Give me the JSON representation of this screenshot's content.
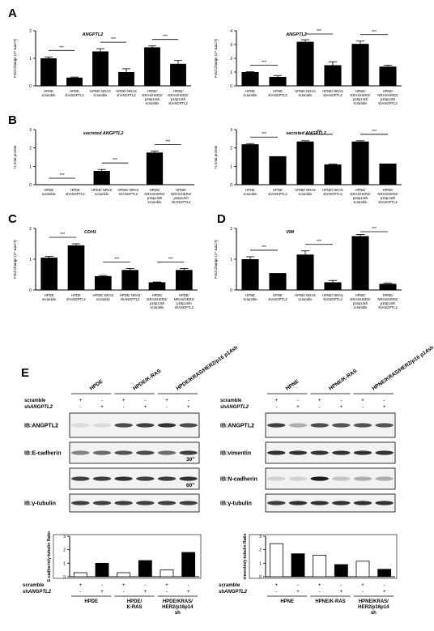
{
  "panels": {
    "A": "A",
    "B": "B",
    "C": "C",
    "D": "D",
    "E": "E"
  },
  "chart_data": [
    {
      "id": "A1",
      "type": "bar",
      "panel": "A",
      "title": "ANGPTL2",
      "ylabel": "Fold Change (2^-ΔΔCT)",
      "ylim": [
        0,
        2
      ],
      "yticks": [
        0,
        1,
        2
      ],
      "categories": [
        "HPDE scramble",
        "HPDE shANGPTL2",
        "HPDE/ NRAS scramble",
        "HPDE/ NRAS shANGPTL2",
        "HPDE/ NRAS/HER2/ p16p14sh scramble",
        "HPDE/ NRAS/HER2/ p16p14sh shANGPTL2"
      ],
      "values": [
        1.0,
        0.3,
        1.25,
        0.5,
        1.4,
        0.8
      ],
      "errors": [
        0.05,
        0.02,
        0.1,
        0.12,
        0.05,
        0.12
      ],
      "sig": "***"
    },
    {
      "id": "A2",
      "type": "bar",
      "panel": "A",
      "title": "ANGPTL2",
      "ylabel": "Fold Change (2^-ΔΔCT)",
      "ylim": [
        0,
        4
      ],
      "yticks": [
        0,
        1,
        2,
        3,
        4
      ],
      "categories": [
        "HPNE scramble",
        "HPNE shANGPTL2",
        "HPNE/ NRAS scramble",
        "HPNE/ NRAS shANGPTL2",
        "HPNE/ NRAS/HER2/ p16p14sh scramble",
        "HPNE/ NRAS/HER2/ p16p14sh shANGPTL2"
      ],
      "values": [
        1.0,
        0.65,
        3.2,
        1.5,
        3.05,
        1.4
      ],
      "errors": [
        0.03,
        0.1,
        0.15,
        0.25,
        0.2,
        0.1
      ],
      "sig": "***"
    },
    {
      "id": "B1",
      "type": "bar",
      "panel": "B",
      "title": "secreted ANGPTL2",
      "ylabel": "% total protein",
      "ylim": [
        0,
        3
      ],
      "yticks": [
        0,
        1,
        2,
        3
      ],
      "categories": [
        "HPDE scramble",
        "HPDE shANGPTL2",
        "HPDE/ NRAS scramble",
        "HPDE/ NRAS shANGPTL2",
        "HPDE/ NRAS/HER2/ p16p14sh scramble",
        "HPDE/ NRAS/HER2/ p16p14sh shANGPTL2"
      ],
      "values": [
        0.0,
        0.0,
        0.75,
        0.0,
        1.75,
        0.0
      ],
      "errors": [
        0,
        0,
        0.08,
        0,
        0.08,
        0
      ],
      "sig": "***"
    },
    {
      "id": "B2",
      "type": "bar",
      "panel": "B",
      "title": "secreted ANGPTL2",
      "ylabel": "% total protein",
      "ylim": [
        0,
        3
      ],
      "yticks": [
        0,
        1,
        2,
        3
      ],
      "categories": [
        "HPNE scramble",
        "HPNE shANGPTL2",
        "HPNE/ NRAS scramble",
        "HPNE/ NRAS shANGPTL2",
        "HPNE/ NRAS/HER2/ p16p14sh scramble",
        "HPNE/ NRAS/HER2/ p16p14sh shANGPTL2"
      ],
      "values": [
        2.2,
        1.55,
        2.35,
        1.1,
        2.35,
        1.15
      ],
      "errors": [
        0.04,
        0,
        0.04,
        0.03,
        0.04,
        0
      ],
      "sig": "***"
    },
    {
      "id": "C",
      "type": "bar",
      "panel": "C",
      "title": "CDH1",
      "ylabel": "Fold Change (2^-ΔΔCT)",
      "ylim": [
        0,
        2
      ],
      "yticks": [
        0,
        1,
        2
      ],
      "categories": [
        "HPDE scramble",
        "HPDE shANGPTL2",
        "HPDE/ NRAS scramble",
        "HPDE/ NRAS shANGPTL2",
        "HPDE/ NRAS/HER2/ p16p14sh scramble",
        "HPDE/ NRAS/HER2/ p16p14sh shANGPTL2"
      ],
      "values": [
        1.05,
        1.45,
        0.45,
        0.65,
        0.25,
        0.65
      ],
      "errors": [
        0.04,
        0.05,
        0.02,
        0.05,
        0.01,
        0.05
      ],
      "sig": "***"
    },
    {
      "id": "D",
      "type": "bar",
      "panel": "D",
      "title": "VIM",
      "ylabel": "Fold Change (2^-ΔΔCT)",
      "ylim": [
        0,
        2
      ],
      "yticks": [
        0,
        1,
        2
      ],
      "categories": [
        "HPNE scramble",
        "HPNE shANGPTL2",
        "HPNE/ NRAS scramble",
        "HPNE/ NRAS shANGPTL2",
        "HPNE/ NRAS/HER2/ p16p14sh scramble",
        "HPNE/ NRAS/HER2/ p16p14sh shANGPTL2"
      ],
      "values": [
        1.0,
        0.55,
        1.15,
        0.25,
        1.75,
        0.2
      ],
      "errors": [
        0.08,
        0,
        0.12,
        0.06,
        0.05,
        0.02
      ],
      "sig": "***"
    },
    {
      "id": "E1",
      "type": "bar",
      "panel": "E",
      "ylabel": "E-cadherin/γ-tubulin Ratio",
      "ylim": [
        0,
        3
      ],
      "yticks": [
        0,
        1,
        2,
        3
      ],
      "values": [
        0.3,
        1.0,
        0.3,
        1.2,
        0.5,
        1.8
      ],
      "fills": [
        "white",
        "black",
        "white",
        "black",
        "white",
        "black"
      ],
      "groups": [
        "HPDE",
        "HPDE/ K-RAS",
        "HPDE/KRAS/ HER2/p16p14 sh"
      ]
    },
    {
      "id": "E2",
      "type": "bar",
      "panel": "E",
      "ylabel": "vimentin/γ-tubulin Ratio",
      "ylim": [
        0,
        3
      ],
      "yticks": [
        0,
        1,
        2,
        3
      ],
      "values": [
        2.45,
        1.7,
        1.6,
        0.9,
        1.15,
        0.55
      ],
      "fills": [
        "white",
        "black",
        "white",
        "black",
        "white",
        "black"
      ],
      "groups": [
        "HPNE",
        "HPNE/K-RAS",
        "HPNE/KRAS/ HER2/p16p14 sh"
      ]
    }
  ],
  "blots": {
    "left": {
      "header": [
        "HPDE",
        "HPDE/K-RAS",
        "HPDE/KRAS/HER2/p16 p14sh"
      ],
      "rows": [
        {
          "label": "IB:ANGPTL2",
          "intensity": [
            0.1,
            0.1,
            0.75,
            0.8,
            0.85,
            0.75
          ],
          "note": ""
        },
        {
          "label": "IB:E-cadherin",
          "intensity": [
            0.5,
            0.6,
            0.7,
            0.75,
            0.6,
            0.8
          ],
          "note": "30\""
        },
        {
          "label": "",
          "intensity": [
            0.8,
            0.8,
            0.85,
            0.8,
            0.8,
            0.85
          ],
          "note": "60\""
        },
        {
          "label": "IB:γ-tubulin",
          "intensity": [
            0.8,
            0.8,
            0.8,
            0.8,
            0.8,
            0.8
          ],
          "note": ""
        }
      ]
    },
    "right": {
      "header": [
        "HPNE",
        "HPNE/K-RAS",
        "HPNE/KRAS/HER2/p16 p14sh"
      ],
      "rows": [
        {
          "label": "IB:ANGPTL2",
          "intensity": [
            0.8,
            0.3,
            0.75,
            0.7,
            0.7,
            0.7
          ],
          "note": ""
        },
        {
          "label": "IB:vimentin",
          "intensity": [
            0.85,
            0.85,
            0.85,
            0.85,
            0.85,
            0.85
          ],
          "note": ""
        },
        {
          "label": "IB:N-cadherin",
          "intensity": [
            0.15,
            0.15,
            0.95,
            0.2,
            0.3,
            0.3
          ],
          "note": ""
        },
        {
          "label": "IB:γ-tubulin",
          "intensity": [
            0.8,
            0.85,
            0.85,
            0.85,
            0.85,
            0.85
          ],
          "note": ""
        }
      ]
    },
    "treat": {
      "scramble": "scramble",
      "sh_prefix": "sh",
      "sh_gene": "ANGPTL2",
      "scramble_signs": [
        "+",
        "-",
        "+",
        "-",
        "+",
        "-"
      ],
      "sh_signs": [
        "-",
        "+",
        "-",
        "+",
        "-",
        "+"
      ]
    }
  }
}
